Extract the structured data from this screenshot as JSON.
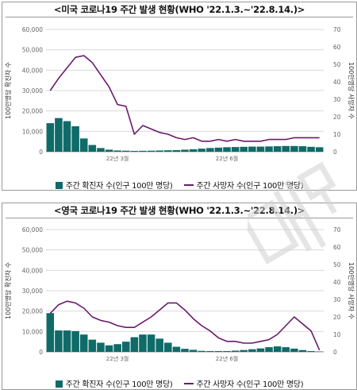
{
  "colors": {
    "bar": "#0f6b68",
    "line": "#6b1a6b",
    "grid": "#d9d9d9",
    "axis_text": "#666666"
  },
  "watermark": {
    "icon": "watermark-logo-icon"
  },
  "chart_data": [
    {
      "type": "bar",
      "title": "<미국 코로나19 주간 발생 현황(WHO '22.1.3.~'22.8.14.)>",
      "ylabel": "100만명당 확진자 수",
      "y2label": "100만명당 사망자 수",
      "ylim": [
        0,
        60000
      ],
      "y2lim": [
        0,
        70
      ],
      "yticks": [
        "0",
        "10,000",
        "20,000",
        "30,000",
        "40,000",
        "50,000",
        "60,000"
      ],
      "y2ticks": [
        "0",
        "10",
        "20",
        "30",
        "40",
        "50",
        "60",
        "70"
      ],
      "x_labels": [
        {
          "label": "22년 3월",
          "index": 8
        },
        {
          "label": "22년 6월",
          "index": 21
        }
      ],
      "legend_bar": "주간 확진자 수(인구 100만 명당)",
      "legend_line": "주간 사망자 수(인구 100만 명당)",
      "series": [
        {
          "kind": "bar",
          "values": [
            14000,
            16500,
            15000,
            12500,
            6500,
            3300,
            1800,
            1000,
            600,
            500,
            400,
            450,
            500,
            600,
            700,
            800,
            1000,
            1200,
            1500,
            1800,
            2000,
            2200,
            2300,
            2400,
            2500,
            2500,
            2600,
            2700,
            2800,
            2800,
            2700,
            2400,
            2200
          ]
        },
        {
          "kind": "line",
          "values": [
            35,
            42,
            48,
            54,
            55,
            51,
            44,
            37,
            27,
            26,
            10,
            15,
            13,
            11,
            10,
            8,
            7,
            8,
            6,
            6,
            7,
            6,
            7,
            6,
            6,
            6,
            7,
            7,
            7,
            8,
            8,
            8,
            8
          ]
        }
      ]
    },
    {
      "type": "bar",
      "title": "<영국 코로나19 주간 발생 현황(WHO '22.1.3.~'22.8.14.)>",
      "ylabel": "100만명당 확진자 수",
      "y2label": "100만명당 사망자 수",
      "ylim": [
        0,
        60000
      ],
      "y2lim": [
        0,
        70
      ],
      "yticks": [
        "0",
        "10,000",
        "20,000",
        "30,000",
        "40,000",
        "50,000",
        "60,000"
      ],
      "y2ticks": [
        "0",
        "10",
        "20",
        "30",
        "40",
        "50",
        "60",
        "70"
      ],
      "x_labels": [
        {
          "label": "22년 3월",
          "index": 8
        },
        {
          "label": "22년 6월",
          "index": 21
        }
      ],
      "legend_bar": "주간 확진자 수(인구 100만 명당)",
      "legend_line": "주간 사망자 수(인구 100만 명당)",
      "series": [
        {
          "kind": "bar",
          "values": [
            19000,
            10500,
            10500,
            10200,
            8500,
            6000,
            4500,
            3200,
            3800,
            5000,
            7200,
            8500,
            8500,
            6500,
            4500,
            2500,
            1500,
            1000,
            500,
            400,
            400,
            400,
            600,
            900,
            1300,
            1700,
            2300,
            2700,
            2300,
            1600,
            900,
            400,
            200
          ]
        },
        {
          "kind": "line",
          "values": [
            22,
            27,
            29,
            28,
            25,
            20,
            18,
            17,
            15,
            14,
            14,
            17,
            20,
            24,
            28,
            28,
            24,
            19,
            15,
            12,
            8,
            6,
            6,
            5,
            5,
            6,
            7,
            10,
            15,
            20,
            16,
            12,
            1
          ]
        }
      ]
    }
  ]
}
